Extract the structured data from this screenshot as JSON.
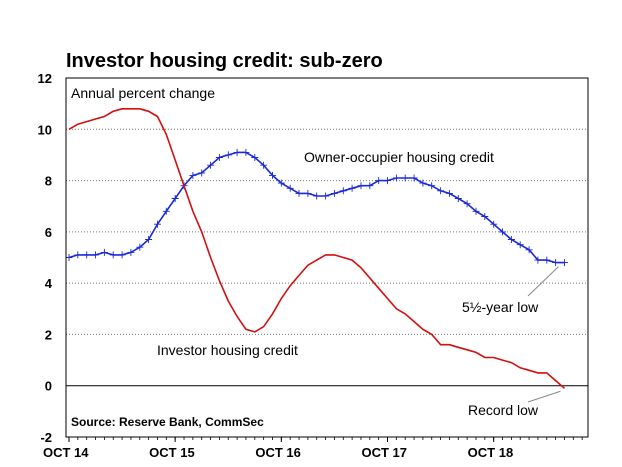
{
  "chart_data": {
    "type": "line",
    "title": "Investor housing credit: sub-zero",
    "ylabel": "Annual percent change",
    "xlabel": "",
    "ylim": [
      -2,
      12
    ],
    "yticks": [
      -2,
      0,
      2,
      4,
      6,
      8,
      10,
      12
    ],
    "xticks": [
      "OCT 14",
      "OCT 15",
      "OCT 16",
      "OCT 17",
      "OCT 18"
    ],
    "x_start": "2014-10",
    "x_end": "2019-06",
    "grid": true,
    "source": "Source: Reserve Bank, CommSec",
    "series": [
      {
        "name": "Owner-occupier housing credit",
        "color": "#1a2ad6",
        "markers": true,
        "x": [
          "2014-10",
          "2014-11",
          "2014-12",
          "2015-01",
          "2015-02",
          "2015-03",
          "2015-04",
          "2015-05",
          "2015-06",
          "2015-07",
          "2015-08",
          "2015-09",
          "2015-10",
          "2015-11",
          "2015-12",
          "2016-01",
          "2016-02",
          "2016-03",
          "2016-04",
          "2016-05",
          "2016-06",
          "2016-07",
          "2016-08",
          "2016-09",
          "2016-10",
          "2016-11",
          "2016-12",
          "2017-01",
          "2017-02",
          "2017-03",
          "2017-04",
          "2017-05",
          "2017-06",
          "2017-07",
          "2017-08",
          "2017-09",
          "2017-10",
          "2017-11",
          "2017-12",
          "2018-01",
          "2018-02",
          "2018-03",
          "2018-04",
          "2018-05",
          "2018-06",
          "2018-07",
          "2018-08",
          "2018-09",
          "2018-10",
          "2018-11",
          "2018-12",
          "2019-01",
          "2019-02",
          "2019-03",
          "2019-04",
          "2019-05",
          "2019-06"
        ],
        "values": [
          5.0,
          5.1,
          5.1,
          5.1,
          5.2,
          5.1,
          5.1,
          5.2,
          5.4,
          5.7,
          6.3,
          6.8,
          7.3,
          7.8,
          8.2,
          8.3,
          8.6,
          8.9,
          9.0,
          9.1,
          9.1,
          8.9,
          8.6,
          8.2,
          7.9,
          7.7,
          7.5,
          7.5,
          7.4,
          7.4,
          7.5,
          7.6,
          7.7,
          7.8,
          7.8,
          8.0,
          8.0,
          8.1,
          8.1,
          8.1,
          7.9,
          7.8,
          7.6,
          7.5,
          7.3,
          7.1,
          6.8,
          6.6,
          6.3,
          6.0,
          5.7,
          5.5,
          5.3,
          4.9,
          4.9,
          4.8,
          4.8
        ]
      },
      {
        "name": "Investor housing credit",
        "color": "#d40f0f",
        "markers": false,
        "x": [
          "2014-10",
          "2014-11",
          "2014-12",
          "2015-01",
          "2015-02",
          "2015-03",
          "2015-04",
          "2015-05",
          "2015-06",
          "2015-07",
          "2015-08",
          "2015-09",
          "2015-10",
          "2015-11",
          "2015-12",
          "2016-01",
          "2016-02",
          "2016-03",
          "2016-04",
          "2016-05",
          "2016-06",
          "2016-07",
          "2016-08",
          "2016-09",
          "2016-10",
          "2016-11",
          "2016-12",
          "2017-01",
          "2017-02",
          "2017-03",
          "2017-04",
          "2017-05",
          "2017-06",
          "2017-07",
          "2017-08",
          "2017-09",
          "2017-10",
          "2017-11",
          "2017-12",
          "2018-01",
          "2018-02",
          "2018-03",
          "2018-04",
          "2018-05",
          "2018-06",
          "2018-07",
          "2018-08",
          "2018-09",
          "2018-10",
          "2018-11",
          "2018-12",
          "2019-01",
          "2019-02",
          "2019-03",
          "2019-04",
          "2019-05",
          "2019-06"
        ],
        "values": [
          10.0,
          10.2,
          10.3,
          10.4,
          10.5,
          10.7,
          10.8,
          10.8,
          10.8,
          10.7,
          10.5,
          9.8,
          8.8,
          7.8,
          6.8,
          6.0,
          5.0,
          4.1,
          3.3,
          2.7,
          2.2,
          2.1,
          2.3,
          2.8,
          3.4,
          3.9,
          4.3,
          4.7,
          4.9,
          5.1,
          5.1,
          5.0,
          4.9,
          4.6,
          4.2,
          3.8,
          3.4,
          3.0,
          2.8,
          2.5,
          2.2,
          2.0,
          1.6,
          1.6,
          1.5,
          1.4,
          1.3,
          1.1,
          1.1,
          1.0,
          0.9,
          0.7,
          0.6,
          0.5,
          0.5,
          0.2,
          -0.1
        ]
      }
    ],
    "annotations": [
      {
        "text": "Annual percent change",
        "kind": "ylabel"
      },
      {
        "text": "Owner-occupier housing credit",
        "series": "Owner-occupier housing credit"
      },
      {
        "text": "Investor housing credit",
        "series": "Investor housing credit"
      },
      {
        "text": "5½-year low",
        "points_to": {
          "x": "2019-06",
          "y": 4.8
        }
      },
      {
        "text": "Record low",
        "points_to": {
          "x": "2019-06",
          "y": -0.1
        }
      }
    ]
  }
}
